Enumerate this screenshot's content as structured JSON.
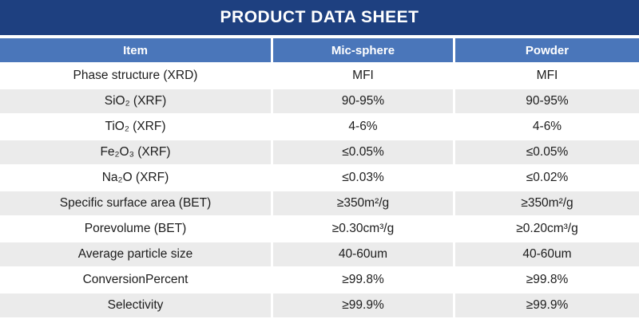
{
  "title": "PRODUCT DATA SHEET",
  "colors": {
    "title_bar": "#1E4080",
    "header_bg": "#4A76BA",
    "row_alt": "#EBEBEB",
    "text": "#1C1C1C",
    "header_text": "#FFFFFF"
  },
  "table": {
    "columns": [
      "Item",
      "Mic-sphere",
      "Powder"
    ],
    "rows": [
      {
        "item": "Phase structure (XRD)",
        "mic_sphere": "MFI",
        "powder": "MFI"
      },
      {
        "item": "SiO₂ (XRF)",
        "mic_sphere": "90-95%",
        "powder": "90-95%"
      },
      {
        "item": "TiO₂ (XRF)",
        "mic_sphere": "4-6%",
        "powder": "4-6%"
      },
      {
        "item": "Fe₂O₃ (XRF)",
        "mic_sphere": "≤0.05%",
        "powder": "≤0.05%"
      },
      {
        "item": "Na₂O (XRF)",
        "mic_sphere": "≤0.03%",
        "powder": "≤0.02%"
      },
      {
        "item": "Specific surface area (BET)",
        "mic_sphere": "≥350m²/g",
        "powder": "≥350m²/g"
      },
      {
        "item": "Porevolume (BET)",
        "mic_sphere": "≥0.30cm³/g",
        "powder": "≥0.20cm³/g"
      },
      {
        "item": "Average particle size",
        "mic_sphere": "40-60um",
        "powder": "40-60um"
      },
      {
        "item": "ConversionPercent",
        "mic_sphere": "≥99.8%",
        "powder": "≥99.8%"
      },
      {
        "item": "Selectivity",
        "mic_sphere": "≥99.9%",
        "powder": "≥99.9%"
      }
    ]
  }
}
